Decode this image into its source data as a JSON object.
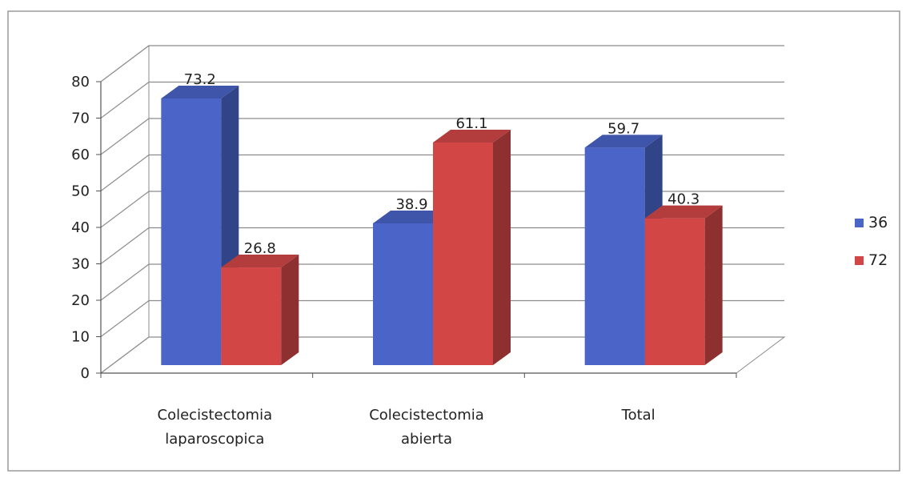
{
  "chart_data": {
    "type": "bar",
    "categories": [
      "Colecistectomia laparoscopica",
      "Colecistectomia abierta",
      "Total"
    ],
    "category_lines": [
      [
        "Colecistectomia",
        "laparoscopica"
      ],
      [
        "Colecistectomia",
        "abierta"
      ],
      [
        "Total"
      ]
    ],
    "series": [
      {
        "name": "36",
        "values": [
          73.2,
          38.9,
          59.7
        ],
        "color": "#4a64c8"
      },
      {
        "name": "72",
        "values": [
          26.8,
          61.1,
          40.3
        ],
        "color": "#d24646"
      }
    ],
    "data_labels": [
      [
        "73.2",
        "38.9",
        "59.7"
      ],
      [
        "26.8",
        "61.1",
        "40.3"
      ]
    ],
    "ylim": [
      0,
      80
    ],
    "yticks": [
      0,
      10,
      20,
      30,
      40,
      50,
      60,
      70,
      80
    ],
    "grid": true,
    "legend_position": "right",
    "title": "",
    "xlabel": "",
    "ylabel": ""
  }
}
